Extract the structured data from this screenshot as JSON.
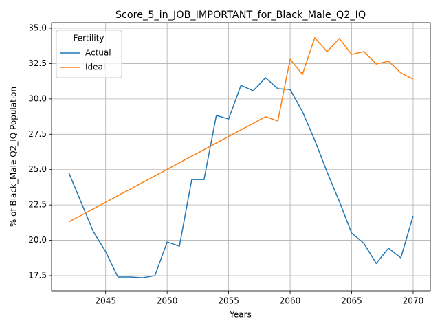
{
  "chart_data": {
    "type": "line",
    "title": "Score_5_in_JOB_IMPORTANT_for_Black_Male_Q2_IQ",
    "x_label": "Years",
    "y_label": "% of Black_Male Q2_IQ Population",
    "x": [
      2042,
      2043,
      2044,
      2045,
      2046,
      2047,
      2048,
      2049,
      2050,
      2051,
      2052,
      2053,
      2054,
      2055,
      2056,
      2057,
      2058,
      2059,
      2060,
      2061,
      2062,
      2063,
      2064,
      2065,
      2066,
      2067,
      2068,
      2069,
      2070
    ],
    "series": [
      {
        "name": "Actual",
        "color": "#1f77b4",
        "values": [
          24.79,
          22.7,
          20.61,
          19.2,
          17.4,
          17.4,
          17.35,
          17.5,
          19.88,
          19.59,
          24.3,
          24.3,
          28.83,
          28.58,
          30.96,
          30.58,
          31.5,
          30.72,
          30.67,
          29.1,
          27.08,
          24.84,
          22.75,
          20.51,
          19.78,
          18.37,
          19.44,
          18.76,
          21.73
        ]
      },
      {
        "name": "Ideal",
        "color": "#ff7f0e",
        "values": [
          21.3,
          21.76,
          22.23,
          22.69,
          23.16,
          23.62,
          24.09,
          24.55,
          25.02,
          25.48,
          25.95,
          26.41,
          26.88,
          27.34,
          27.81,
          28.27,
          28.74,
          28.44,
          32.81,
          31.74,
          34.32,
          33.35,
          34.27,
          33.15,
          33.35,
          32.47,
          32.67,
          31.84,
          31.4
        ]
      }
    ],
    "legend_title": "Fertility",
    "legend": "upper left",
    "grid": true,
    "xlim": [
      2040.6,
      2071.4
    ],
    "ylim": [
      16.43,
      35.39
    ],
    "xticks": [
      2045,
      2050,
      2055,
      2060,
      2065,
      2070
    ],
    "yticks": [
      17.5,
      {
        "value": 20,
        "label": "20.0"
      },
      22.5,
      {
        "value": 25,
        "label": "25.0"
      },
      27.5,
      {
        "value": 30,
        "label": "30.0"
      },
      32.5,
      {
        "value": 35,
        "label": "35.0"
      }
    ]
  }
}
